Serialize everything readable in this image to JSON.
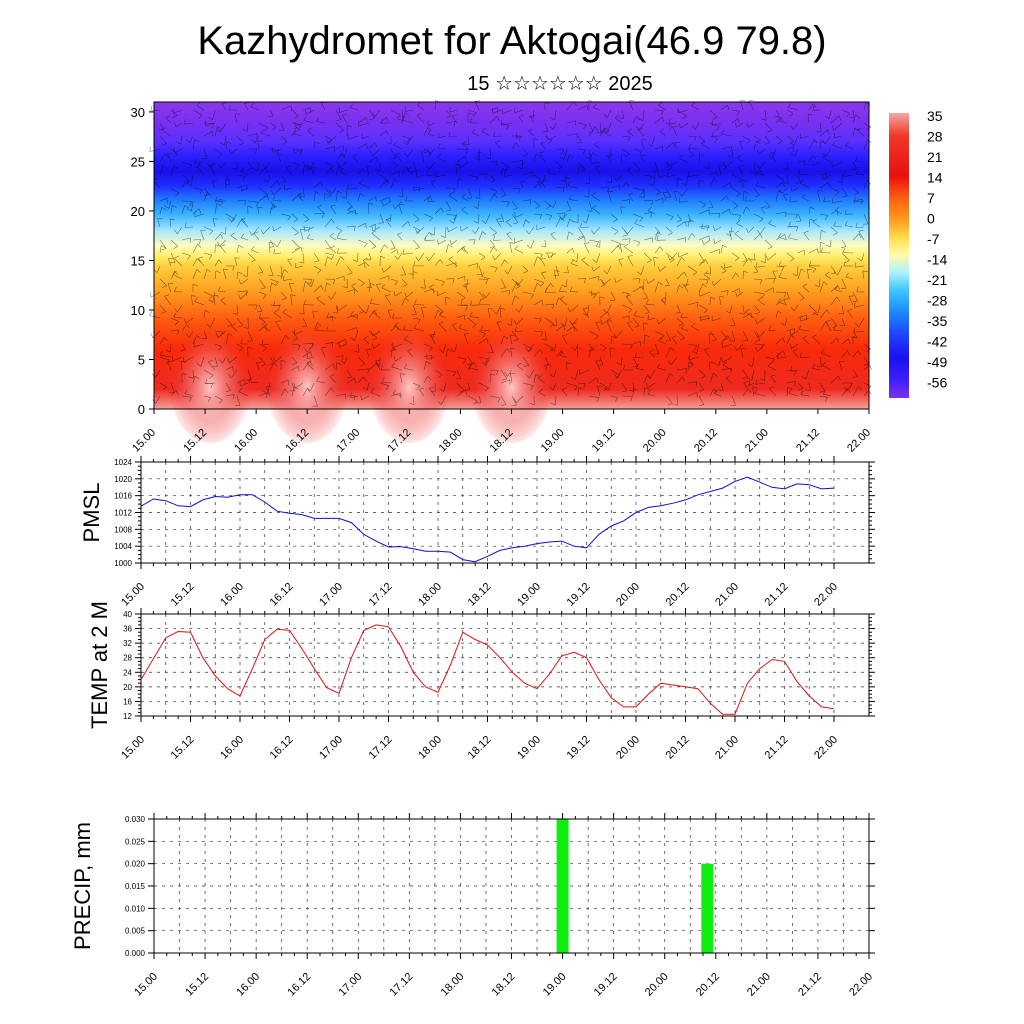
{
  "title": "Kazhydromet for Aktogai(46.9 79.8)",
  "subtitle": "15 ☆☆☆☆☆☆ 2025",
  "time_labels": [
    "15.00",
    "15.12",
    "16.00",
    "16.12",
    "17.00",
    "17.12",
    "18.00",
    "18.12",
    "19.00",
    "19.12",
    "20.00",
    "20.12",
    "21.00",
    "21.12",
    "22.00"
  ],
  "chart_data": [
    {
      "type": "heatmap",
      "yticks": [
        0,
        5,
        10,
        15,
        20,
        25,
        30
      ],
      "ylim": [
        0,
        31
      ],
      "colorbar": {
        "labels": [
          "35",
          "28",
          "21",
          "14",
          "7",
          "0",
          "-7",
          "-14",
          "-21",
          "-28",
          "-35",
          "-42",
          "-49",
          "-56"
        ]
      },
      "overlay": "wind barbs"
    },
    {
      "type": "line",
      "ylabel": "PMSL",
      "ylim": [
        1000,
        1024
      ],
      "yticks": [
        1000,
        1004,
        1008,
        1012,
        1016,
        1020,
        1024
      ],
      "color": "#1010d0",
      "x": [
        0,
        3,
        6,
        9,
        12,
        15,
        18,
        21,
        24,
        27,
        30,
        33,
        36,
        39,
        42,
        45,
        48,
        51,
        54,
        57,
        60,
        63,
        66,
        69,
        72,
        75,
        78,
        81,
        84,
        87,
        90,
        93,
        96,
        99,
        102,
        105,
        108,
        111,
        114,
        117,
        120,
        123,
        126,
        129,
        132,
        135,
        138,
        141,
        144,
        147,
        150,
        153,
        156,
        159,
        162,
        165,
        168
      ],
      "values": [
        1013.5,
        1015.2,
        1014.8,
        1013.6,
        1013.4,
        1015.0,
        1015.8,
        1015.6,
        1016.2,
        1016.2,
        1014.5,
        1012.3,
        1011.8,
        1011.5,
        1010.6,
        1010.6,
        1010.6,
        1009.6,
        1006.8,
        1005.2,
        1003.8,
        1003.9,
        1003.4,
        1002.8,
        1002.8,
        1002.6,
        1000.8,
        1000.3,
        1001.6,
        1003.0,
        1003.6,
        1004.0,
        1004.6,
        1005.0,
        1005.2,
        1004.0,
        1003.6,
        1006.8,
        1008.8,
        1010.0,
        1012.0,
        1013.2,
        1013.6,
        1014.2,
        1015.0,
        1016.2,
        1017.0,
        1017.8,
        1019.4,
        1020.4,
        1019.2,
        1018.0,
        1017.6,
        1018.8,
        1018.6,
        1017.6,
        1017.8
      ]
    },
    {
      "type": "line",
      "ylabel": "TEMP at 2 M",
      "ylim": [
        12,
        40
      ],
      "yticks": [
        12,
        16,
        20,
        24,
        28,
        32,
        36,
        40
      ],
      "color": "#e01010",
      "x": [
        0,
        6,
        9,
        12,
        15,
        18,
        21,
        24,
        27,
        30,
        33,
        36,
        39,
        42,
        45,
        48,
        51,
        54,
        57,
        60,
        63,
        66,
        69,
        72,
        75,
        78,
        81,
        84,
        87,
        90,
        93,
        96,
        99,
        102,
        105,
        108,
        111,
        114,
        117,
        120,
        123,
        126,
        129,
        132,
        135,
        138,
        141,
        144,
        147,
        150,
        153,
        156,
        159,
        162,
        165,
        168
      ],
      "values": [
        22.0,
        33.5,
        35.2,
        35.0,
        28.0,
        23.0,
        19.5,
        17.5,
        25.0,
        33.0,
        35.8,
        35.5,
        30.5,
        25.0,
        19.8,
        18.2,
        28.0,
        35.5,
        37.0,
        36.5,
        31.0,
        24.0,
        20.0,
        18.5,
        26.0,
        35.0,
        33.0,
        31.5,
        28.0,
        24.0,
        21.0,
        19.5,
        23.5,
        28.5,
        29.5,
        28.0,
        22.0,
        17.0,
        14.5,
        14.5,
        18.0,
        21.0,
        20.5,
        20.0,
        19.5,
        15.5,
        12.5,
        12.5,
        21.0,
        25.0,
        27.5,
        27.0,
        21.5,
        17.5,
        14.5,
        14.0
      ]
    },
    {
      "type": "bar",
      "ylabel": "PRECIP, mm",
      "ylim": [
        0,
        0.03
      ],
      "yticks": [
        "0.000",
        "0.005",
        "0.010",
        "0.015",
        "0.020",
        "0.025",
        "0.030"
      ],
      "color": "#10ee10",
      "x": [
        96,
        130
      ],
      "values": [
        0.03,
        0.02
      ]
    }
  ]
}
